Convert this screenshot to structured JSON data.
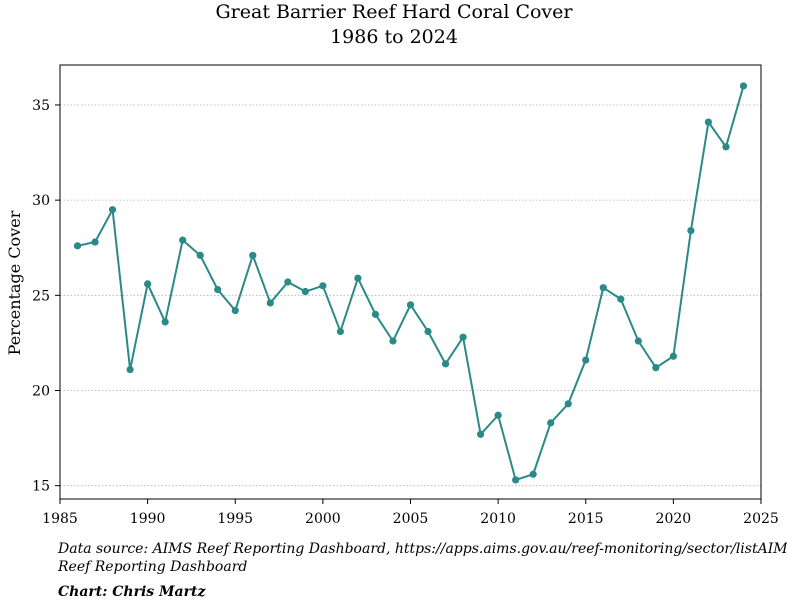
{
  "chart_data": {
    "type": "line",
    "title": "Great Barrier Reef Hard Coral Cover",
    "subtitle": "1986 to 2024",
    "xlabel": "",
    "ylabel": "Percentage Cover",
    "xlim": [
      1985,
      2025
    ],
    "ylim": [
      14.3,
      37.1
    ],
    "x_ticks": [
      1985,
      1990,
      1995,
      2000,
      2005,
      2010,
      2015,
      2020,
      2025
    ],
    "y_ticks": [
      15,
      20,
      25,
      30,
      35
    ],
    "grid": "horizontal-dotted",
    "legend": "none",
    "series": [
      {
        "x": [
          1986,
          1987,
          1988,
          1989,
          1990,
          1991,
          1992,
          1993,
          1994,
          1995,
          1996,
          1997,
          1998,
          1999,
          2000,
          2001,
          2002,
          2003,
          2004,
          2005,
          2006,
          2007,
          2008,
          2009,
          2010,
          2011,
          2012,
          2013,
          2014,
          2015,
          2016,
          2017,
          2018,
          2019,
          2020,
          2021,
          2022,
          2023,
          2024
        ],
        "values": [
          27.6,
          27.8,
          29.5,
          21.1,
          25.6,
          23.6,
          27.9,
          27.1,
          25.3,
          24.2,
          27.1,
          24.6,
          25.7,
          25.2,
          25.5,
          23.1,
          25.9,
          24.0,
          22.6,
          24.5,
          23.1,
          21.4,
          22.8,
          17.7,
          18.7,
          15.3,
          15.6,
          18.3,
          19.3,
          21.6,
          25.4,
          24.8,
          22.6,
          21.2,
          21.8,
          28.4,
          34.1,
          32.8,
          36.0
        ]
      }
    ],
    "colors": {
      "line": "#2a8a87",
      "grid": "#b0b0b0"
    }
  },
  "footer": {
    "source_line1": "Data source: AIMS Reef Reporting Dashboard, https://apps.aims.gov.au/reef-monitoring/sector/listAIMS",
    "source_line2": "Reef Reporting Dashboard",
    "credit": "Chart: Chris Martz"
  }
}
